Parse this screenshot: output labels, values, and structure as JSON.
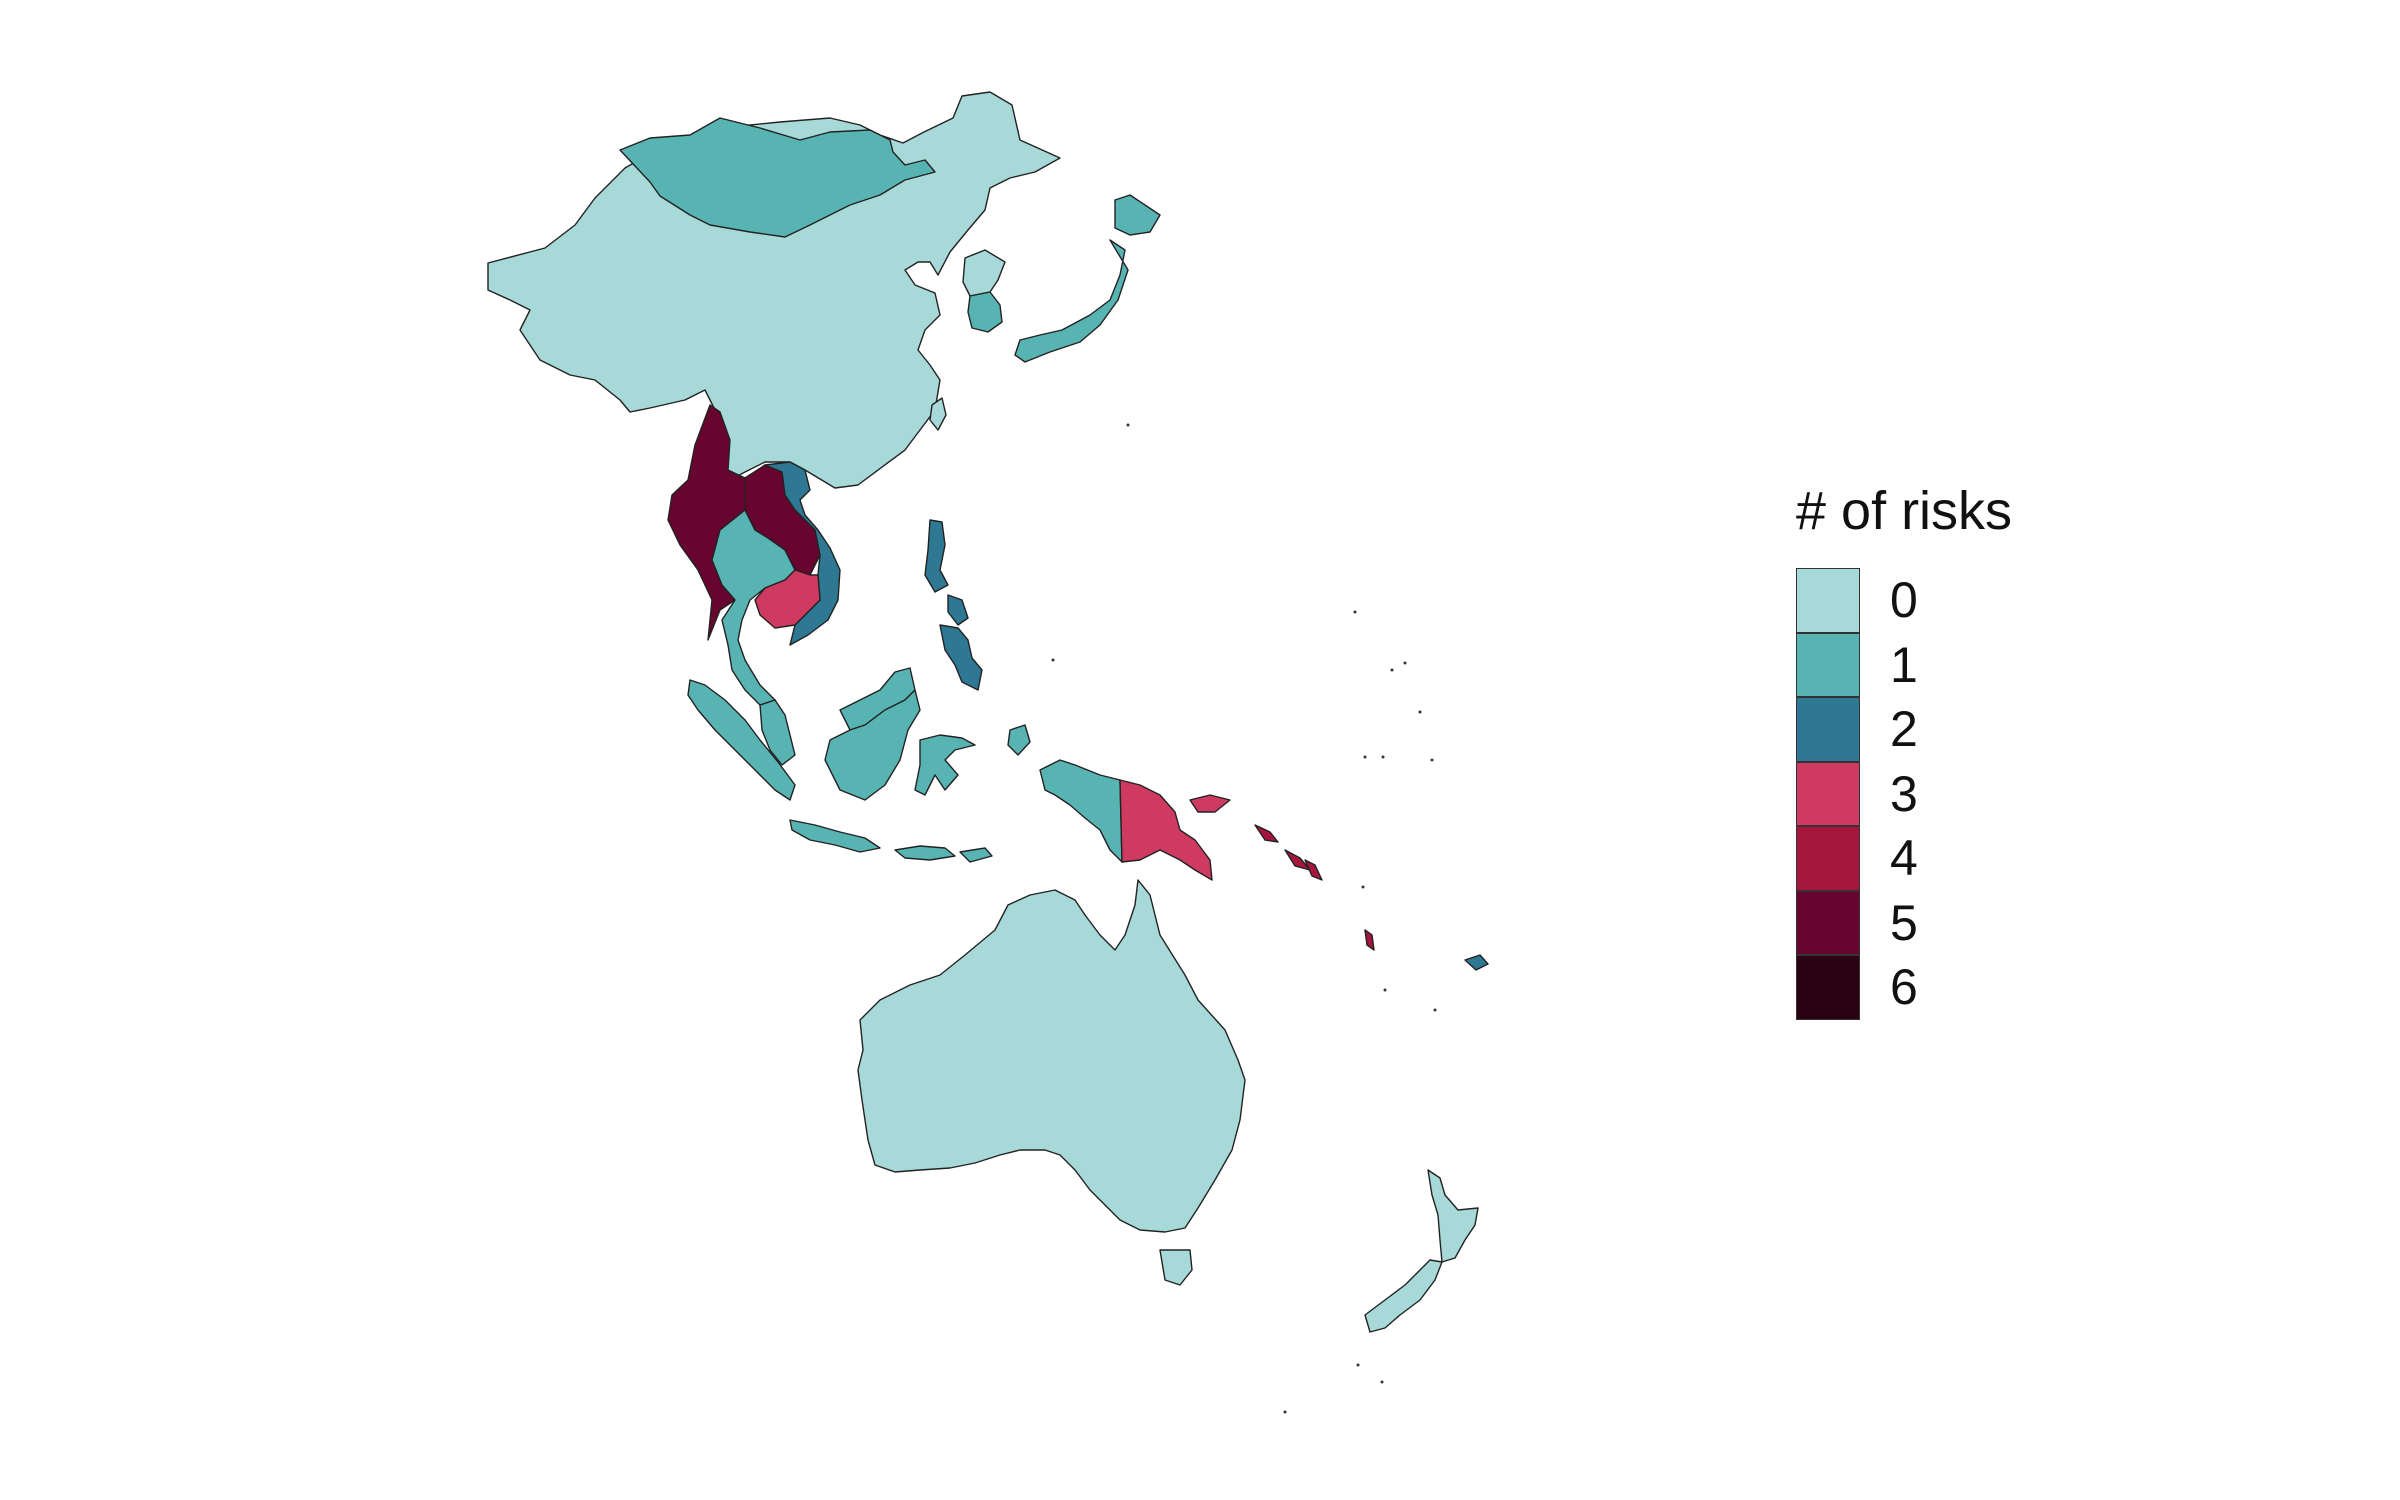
{
  "legend": {
    "title": "# of risks",
    "items": [
      {
        "label": "0",
        "color": "#a7d9d8"
      },
      {
        "label": "1",
        "color": "#58b4b3"
      },
      {
        "label": "2",
        "color": "#2e7893"
      },
      {
        "label": "3",
        "color": "#cf3a61"
      },
      {
        "label": "4",
        "color": "#a6163c"
      },
      {
        "label": "5",
        "color": "#67042f"
      },
      {
        "label": "6",
        "color": "#2a0213"
      }
    ]
  },
  "regions": [
    {
      "name": "china",
      "risks": 0
    },
    {
      "name": "mongolia",
      "risks": 1
    },
    {
      "name": "north-korea",
      "risks": 0
    },
    {
      "name": "south-korea",
      "risks": 1
    },
    {
      "name": "japan",
      "risks": 1
    },
    {
      "name": "taiwan",
      "risks": 0
    },
    {
      "name": "myanmar",
      "risks": 5
    },
    {
      "name": "laos",
      "risks": 5
    },
    {
      "name": "thailand",
      "risks": 1
    },
    {
      "name": "vietnam",
      "risks": 2
    },
    {
      "name": "cambodia",
      "risks": 3
    },
    {
      "name": "malaysia",
      "risks": 1
    },
    {
      "name": "indonesia",
      "risks": 1
    },
    {
      "name": "philippines",
      "risks": 2
    },
    {
      "name": "papua-new-guinea",
      "risks": 3
    },
    {
      "name": "solomon-islands",
      "risks": 4
    },
    {
      "name": "vanuatu",
      "risks": 4
    },
    {
      "name": "fiji",
      "risks": 2
    },
    {
      "name": "australia",
      "risks": 0
    },
    {
      "name": "new-zealand",
      "risks": 0
    }
  ]
}
